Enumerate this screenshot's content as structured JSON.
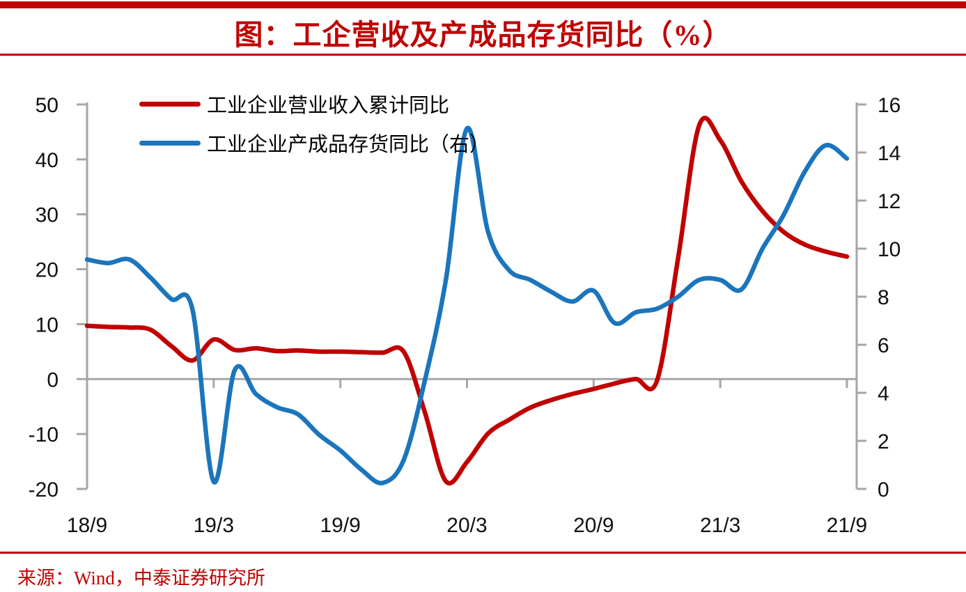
{
  "header": {
    "title": "图：工企营收及产成品存货同比（%）",
    "accent_color": "#C00000"
  },
  "legend": [
    {
      "label": "工业企业营业收入累计同比",
      "color": "#C00000"
    },
    {
      "label": "工业企业产成品存货同比（右）",
      "color": "#1B75BC"
    }
  ],
  "chart_data": {
    "type": "line",
    "title": "图：工企营收及产成品存货同比（%）",
    "x": [
      "18/9",
      "18/10",
      "18/11",
      "18/12",
      "19/1",
      "19/2",
      "19/3",
      "19/4",
      "19/5",
      "19/6",
      "19/7",
      "19/8",
      "19/9",
      "19/10",
      "19/11",
      "19/12",
      "20/1",
      "20/2",
      "20/3",
      "20/4",
      "20/5",
      "20/6",
      "20/7",
      "20/8",
      "20/9",
      "20/10",
      "20/11",
      "20/12",
      "21/1",
      "21/2",
      "21/3",
      "21/4",
      "21/5",
      "21/6",
      "21/7",
      "21/8",
      "21/9"
    ],
    "x_tick_indices": [
      0,
      6,
      12,
      18,
      24,
      30,
      36
    ],
    "x_tick_labels": [
      "18/9",
      "19/3",
      "19/9",
      "20/3",
      "20/9",
      "21/3",
      "21/9"
    ],
    "series": [
      {
        "name": "工业企业营业收入累计同比",
        "axis": "left",
        "color": "#C00000",
        "values": [
          9.7,
          9.5,
          9.4,
          9.0,
          6.0,
          3.4,
          7.2,
          5.3,
          5.6,
          5.1,
          5.2,
          5.0,
          5.0,
          4.9,
          4.8,
          5.0,
          -6.0,
          -18.6,
          -15.1,
          -9.9,
          -7.4,
          -5.2,
          -3.8,
          -2.7,
          -1.8,
          -0.8,
          0.0,
          -0.3,
          22.0,
          46.2,
          43.5,
          36.0,
          30.6,
          26.8,
          24.5,
          23.2,
          22.3
        ]
      },
      {
        "name": "工业企业产成品存货同比（右）",
        "axis": "right",
        "color": "#1B75BC",
        "values": [
          9.55,
          9.4,
          9.55,
          8.8,
          7.9,
          7.45,
          0.3,
          4.95,
          3.95,
          3.4,
          3.1,
          2.25,
          1.6,
          0.8,
          0.25,
          1.2,
          4.5,
          8.7,
          15.0,
          10.7,
          9.1,
          8.7,
          8.2,
          7.8,
          8.25,
          6.9,
          7.35,
          7.5,
          8.0,
          8.7,
          8.7,
          8.3,
          10.0,
          11.4,
          13.2,
          14.3,
          13.75
        ]
      }
    ],
    "left_axis": {
      "min": -20,
      "max": 50,
      "ticks": [
        50,
        40,
        30,
        20,
        10,
        0,
        -10,
        -20
      ]
    },
    "right_axis": {
      "min": 0,
      "max": 16,
      "ticks": [
        16,
        14,
        12,
        10,
        8,
        6,
        4,
        2,
        0
      ]
    },
    "grid": "off",
    "legend_position": "top-left",
    "axis_color": "#A6A6A6",
    "label_color": "#111111"
  },
  "footer": {
    "source": "来源：Wind，中泰证券研究所"
  }
}
